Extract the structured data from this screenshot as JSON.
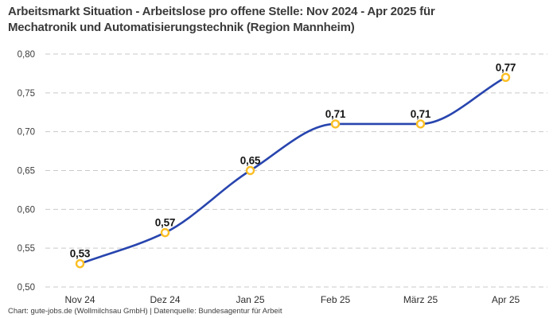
{
  "title": {
    "line1": "Arbeitsmarkt Situation - Arbeitslose pro offene Stelle: Nov 2024 - Apr 2025 für",
    "line2": "Mechatronik und Automatisierungstechnik (Region Mannheim)"
  },
  "footer": "Chart: gute-jobs.de (Wollmilchsau GmbH) | Datenquelle: Bundesagentur für Arbeit",
  "colors": {
    "line": "#2845ae",
    "marker_stroke": "#fbbf24",
    "marker_fill": "#ffffff",
    "grid": "#c9c9c9",
    "title_text": "#3a3a3a",
    "value_label_text": "#151515",
    "axis_text": "#3c3c3c",
    "footer_text": "#3d3d3d",
    "background": "#ffffff"
  },
  "chart_data": {
    "type": "line",
    "title": "Arbeitsmarkt Situation - Arbeitslose pro offene Stelle: Nov 2024 - Apr 2025 für Mechatronik und Automatisierungstechnik (Region Mannheim)",
    "categories": [
      "Nov 24",
      "Dez 24",
      "Jan 25",
      "Feb 25",
      "März 25",
      "Apr 25"
    ],
    "values": [
      0.53,
      0.57,
      0.65,
      0.71,
      0.71,
      0.77
    ],
    "value_labels": [
      "0,53",
      "0,57",
      "0,65",
      "0,71",
      "0,71",
      "0,77"
    ],
    "y_ticks": [
      0.5,
      0.55,
      0.6,
      0.65,
      0.7,
      0.75,
      0.8
    ],
    "y_tick_labels": [
      "0,50",
      "0,55",
      "0,60",
      "0,65",
      "0,70",
      "0,75",
      "0,80"
    ],
    "ylim": [
      0.5,
      0.8
    ],
    "xlabel": "",
    "ylabel": "",
    "grid": "horizontal-dashed",
    "legend": "none",
    "line_style": "smooth-monotone",
    "marker": "hollow-circle"
  }
}
